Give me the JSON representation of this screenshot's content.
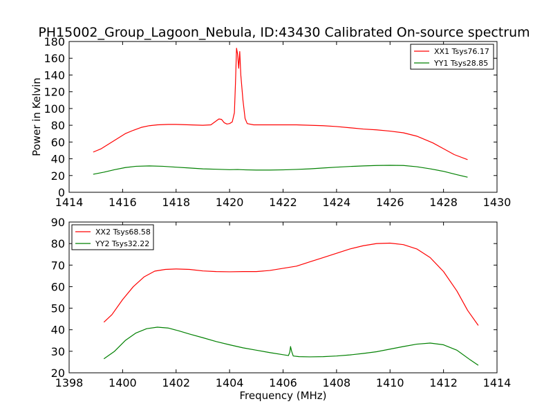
{
  "figure": {
    "title": "PH15002_Group_Lagoon_Nebula, ID:43430 Calibrated On-source spectrum"
  },
  "chart_data": [
    {
      "type": "line",
      "title": "PH15002_Group_Lagoon_Nebula, ID:43430 Calibrated On-source spectrum",
      "xlabel": "",
      "ylabel": "Power in Kelvin",
      "xlim": [
        1414,
        1430
      ],
      "ylim": [
        0,
        180
      ],
      "xticks": [
        1414,
        1416,
        1418,
        1420,
        1422,
        1424,
        1426,
        1428,
        1430
      ],
      "yticks": [
        0,
        20,
        40,
        60,
        80,
        100,
        120,
        140,
        160,
        180
      ],
      "grid": false,
      "legend_position": "top-right",
      "series": [
        {
          "name": "XX1 Tsys76.17",
          "color": "#ff0000",
          "points": [
            [
              1414.9,
              48
            ],
            [
              1415.2,
              52
            ],
            [
              1415.5,
              58
            ],
            [
              1415.8,
              64
            ],
            [
              1416.1,
              70
            ],
            [
              1416.4,
              74
            ],
            [
              1416.7,
              77.5
            ],
            [
              1417,
              79.5
            ],
            [
              1417.3,
              80.5
            ],
            [
              1417.7,
              81
            ],
            [
              1418,
              81
            ],
            [
              1418.5,
              80.5
            ],
            [
              1419,
              80
            ],
            [
              1419.3,
              80.5
            ],
            [
              1419.45,
              84
            ],
            [
              1419.6,
              87.5
            ],
            [
              1419.7,
              87
            ],
            [
              1419.8,
              83
            ],
            [
              1419.9,
              81.5
            ],
            [
              1420.0,
              82
            ],
            [
              1420.1,
              84
            ],
            [
              1420.18,
              95
            ],
            [
              1420.22,
              130
            ],
            [
              1420.26,
              172
            ],
            [
              1420.3,
              165
            ],
            [
              1420.34,
              148
            ],
            [
              1420.38,
              168
            ],
            [
              1420.42,
              140
            ],
            [
              1420.5,
              110
            ],
            [
              1420.58,
              88
            ],
            [
              1420.66,
              82
            ],
            [
              1420.9,
              80.5
            ],
            [
              1421.5,
              80.5
            ],
            [
              1422,
              80.5
            ],
            [
              1422.5,
              80.5
            ],
            [
              1423,
              80
            ],
            [
              1423.5,
              79.5
            ],
            [
              1424,
              78.5
            ],
            [
              1424.5,
              77
            ],
            [
              1425,
              75.5
            ],
            [
              1425.5,
              74.5
            ],
            [
              1426,
              73
            ],
            [
              1426.5,
              71
            ],
            [
              1427,
              67
            ],
            [
              1427.3,
              63
            ],
            [
              1427.6,
              59
            ],
            [
              1428,
              52
            ],
            [
              1428.4,
              45
            ],
            [
              1428.9,
              39
            ]
          ]
        },
        {
          "name": "YY1 Tsys28.85",
          "color": "#008000",
          "points": [
            [
              1414.9,
              21.5
            ],
            [
              1415.3,
              24
            ],
            [
              1415.7,
              27
            ],
            [
              1416.1,
              29.5
            ],
            [
              1416.5,
              31
            ],
            [
              1417,
              31.5
            ],
            [
              1417.5,
              31
            ],
            [
              1418,
              30
            ],
            [
              1418.5,
              29
            ],
            [
              1419,
              28
            ],
            [
              1419.5,
              27.5
            ],
            [
              1420,
              27
            ],
            [
              1420.3,
              27.2
            ],
            [
              1420.6,
              26.8
            ],
            [
              1421,
              26.5
            ],
            [
              1421.5,
              26.5
            ],
            [
              1422,
              26.8
            ],
            [
              1422.5,
              27.3
            ],
            [
              1423,
              28
            ],
            [
              1423.5,
              29
            ],
            [
              1424,
              30
            ],
            [
              1424.5,
              30.8
            ],
            [
              1425,
              31.5
            ],
            [
              1425.5,
              32
            ],
            [
              1426,
              32.2
            ],
            [
              1426.5,
              32
            ],
            [
              1427,
              30.5
            ],
            [
              1427.5,
              28
            ],
            [
              1428,
              25
            ],
            [
              1428.5,
              21
            ],
            [
              1428.9,
              18
            ]
          ]
        }
      ]
    },
    {
      "type": "line",
      "title": "",
      "xlabel": "Frequency (MHz)",
      "ylabel": "",
      "xlim": [
        1398,
        1414
      ],
      "ylim": [
        20,
        90
      ],
      "xticks": [
        1398,
        1400,
        1402,
        1404,
        1406,
        1408,
        1410,
        1412,
        1414
      ],
      "yticks": [
        20,
        30,
        40,
        50,
        60,
        70,
        80,
        90
      ],
      "grid": false,
      "legend_position": "top-left",
      "series": [
        {
          "name": "XX2 Tsys68.58",
          "color": "#ff0000",
          "points": [
            [
              1399.3,
              43.5
            ],
            [
              1399.6,
              47
            ],
            [
              1400,
              54
            ],
            [
              1400.4,
              60
            ],
            [
              1400.8,
              64.5
            ],
            [
              1401.2,
              67.2
            ],
            [
              1401.6,
              68
            ],
            [
              1402,
              68.2
            ],
            [
              1402.5,
              68
            ],
            [
              1403,
              67.3
            ],
            [
              1403.5,
              67
            ],
            [
              1404,
              66.9
            ],
            [
              1404.5,
              67
            ],
            [
              1405,
              67
            ],
            [
              1405.5,
              67.5
            ],
            [
              1406,
              68.5
            ],
            [
              1406.5,
              69.5
            ],
            [
              1407,
              71.5
            ],
            [
              1407.5,
              73.5
            ],
            [
              1408,
              75.5
            ],
            [
              1408.5,
              77.5
            ],
            [
              1409,
              79
            ],
            [
              1409.5,
              80
            ],
            [
              1410,
              80.2
            ],
            [
              1410.5,
              79.5
            ],
            [
              1411,
              77.5
            ],
            [
              1411.5,
              73.5
            ],
            [
              1412,
              67
            ],
            [
              1412.5,
              58
            ],
            [
              1412.9,
              49
            ],
            [
              1413.3,
              42
            ]
          ]
        },
        {
          "name": "YY2 Tsys32.22",
          "color": "#008000",
          "points": [
            [
              1399.3,
              26.5
            ],
            [
              1399.7,
              30
            ],
            [
              1400.1,
              35
            ],
            [
              1400.5,
              38.5
            ],
            [
              1400.9,
              40.5
            ],
            [
              1401.3,
              41.2
            ],
            [
              1401.7,
              40.8
            ],
            [
              1402.1,
              39.5
            ],
            [
              1402.5,
              38
            ],
            [
              1403,
              36.3
            ],
            [
              1403.5,
              34.5
            ],
            [
              1404,
              33
            ],
            [
              1404.5,
              31.6
            ],
            [
              1405,
              30.5
            ],
            [
              1405.5,
              29.4
            ],
            [
              1406,
              28.4
            ],
            [
              1406.2,
              28
            ],
            [
              1406.25,
              29.5
            ],
            [
              1406.28,
              32.2
            ],
            [
              1406.32,
              30
            ],
            [
              1406.38,
              27.8
            ],
            [
              1406.6,
              27.5
            ],
            [
              1407,
              27.4
            ],
            [
              1407.5,
              27.5
            ],
            [
              1408,
              27.8
            ],
            [
              1408.5,
              28.3
            ],
            [
              1409,
              29
            ],
            [
              1409.5,
              29.8
            ],
            [
              1410,
              31
            ],
            [
              1410.5,
              32.2
            ],
            [
              1411,
              33.3
            ],
            [
              1411.5,
              33.8
            ],
            [
              1412,
              33
            ],
            [
              1412.5,
              30.5
            ],
            [
              1413,
              26
            ],
            [
              1413.3,
              23.5
            ]
          ]
        }
      ]
    }
  ]
}
